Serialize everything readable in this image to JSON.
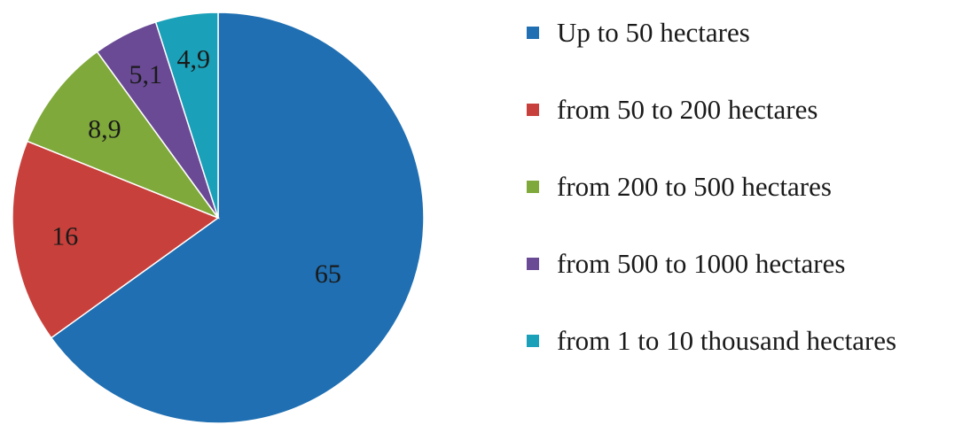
{
  "chart_data": {
    "type": "pie",
    "categories": [
      "Up to 50 hectares",
      "from 50 to 200 hectares",
      "from 200 to 500 hectares",
      "from 500 to 1000 hectares",
      "from 1 to 10 thousand hectares"
    ],
    "values": [
      65,
      16,
      8.9,
      5.1,
      4.9
    ],
    "value_labels": [
      "65",
      "16",
      "8,9",
      "5,1",
      "4,9"
    ],
    "colors": [
      "#1f6fb2",
      "#c8403b",
      "#7fa93a",
      "#6a4a95",
      "#1aa0b8"
    ],
    "start_angle": "12 o'clock",
    "direction": "clockwise",
    "legend_position": "right"
  }
}
